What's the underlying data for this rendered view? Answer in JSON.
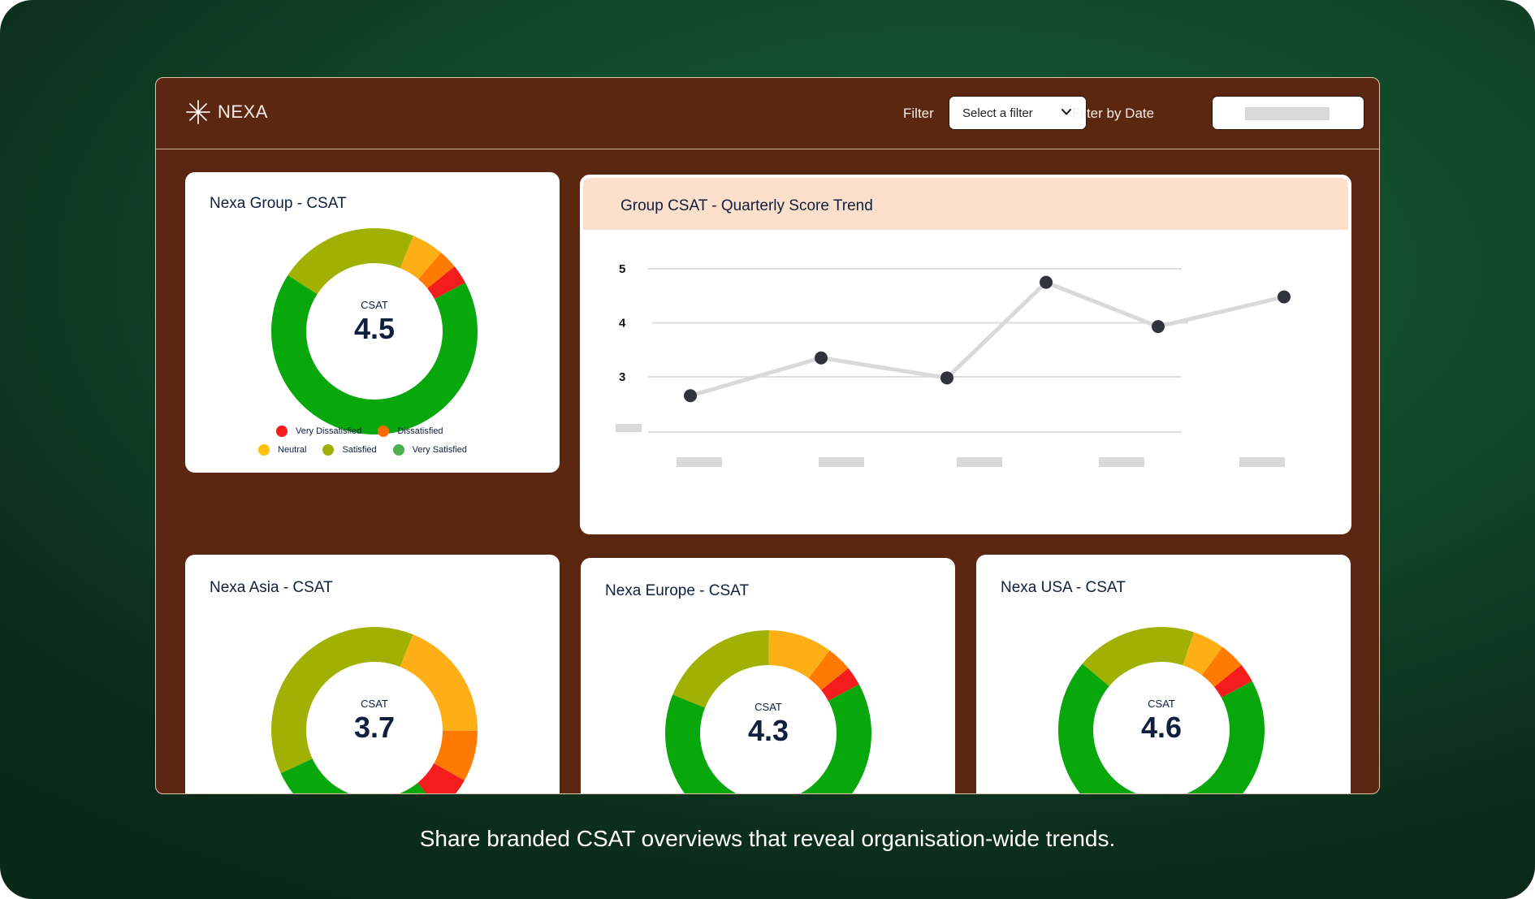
{
  "app": {
    "brand": "NEXA",
    "filter_label": "Filter",
    "filter_select_value": "Select a filter",
    "date_filter_label": "Filter by Date",
    "date_filter_value": ""
  },
  "colors": {
    "very_dissatisfied": "#F41C1C",
    "dissatisfied": "#FF7A00",
    "neutral": "#FFAF16",
    "satisfied": "#A1B103",
    "very_satisfied": "#08A70C",
    "legend_very_satisfied": "#4CAF50",
    "panel_bg": "#5C2710",
    "chart_header_bg": "#FCE0CB",
    "text_dark": "#0F1F3D"
  },
  "legend": [
    {
      "key": "very_dissatisfied",
      "label": "Very Dissatisfied"
    },
    {
      "key": "dissatisfied",
      "label": "Dissatisfied"
    },
    {
      "key": "neutral",
      "label": "Neutral"
    },
    {
      "key": "satisfied",
      "label": "Satisfied"
    },
    {
      "key": "very_satisfied",
      "label": "Very Satisfied"
    }
  ],
  "cards": {
    "group": {
      "title": "Nexa Group - CSAT",
      "center_label": "CSAT",
      "score": "4.5"
    },
    "asia": {
      "title": "Nexa Asia - CSAT",
      "center_label": "CSAT",
      "score": "3.7"
    },
    "europe": {
      "title": "Nexa Europe - CSAT",
      "center_label": "CSAT",
      "score": "4.3"
    },
    "usa": {
      "title": "Nexa USA - CSAT",
      "center_label": "CSAT",
      "score": "4.6"
    }
  },
  "chart_data": [
    {
      "type": "pie",
      "title": "Nexa Group - CSAT",
      "center_text": "CSAT 4.5",
      "categories": [
        "Satisfied",
        "Neutral",
        "Dissatisfied",
        "Very Dissatisfied",
        "Very Satisfied"
      ],
      "values": [
        22,
        5,
        3,
        3,
        67
      ],
      "unit": "percent (estimated)",
      "legend": "bottom"
    },
    {
      "type": "pie",
      "title": "Nexa Asia - CSAT",
      "center_text": "CSAT 3.7",
      "categories": [
        "Satisfied",
        "Neutral",
        "Dissatisfied",
        "Very Dissatisfied",
        "Very Satisfied"
      ],
      "values": [
        38,
        19,
        8,
        6,
        29
      ],
      "unit": "percent (estimated)"
    },
    {
      "type": "pie",
      "title": "Nexa Europe - CSAT",
      "center_text": "CSAT 4.3",
      "categories": [
        "Satisfied",
        "Neutral",
        "Dissatisfied",
        "Very Dissatisfied",
        "Very Satisfied"
      ],
      "values": [
        19,
        10,
        4,
        3,
        64
      ],
      "unit": "percent (estimated)"
    },
    {
      "type": "pie",
      "title": "Nexa USA - CSAT",
      "center_text": "CSAT 4.6",
      "categories": [
        "Satisfied",
        "Neutral",
        "Dissatisfied",
        "Very Dissatisfied",
        "Very Satisfied"
      ],
      "values": [
        19,
        5,
        4,
        3,
        69
      ],
      "unit": "percent (estimated)"
    },
    {
      "type": "line",
      "title": "Group CSAT - Quarterly Score Trend",
      "xlabel": "",
      "ylabel": "",
      "categories": [
        "",
        "",
        "",
        "",
        "",
        ""
      ],
      "series": [
        {
          "name": "Group CSAT",
          "values": [
            2.65,
            3.35,
            2.98,
            4.75,
            3.93,
            4.48
          ]
        }
      ],
      "y_ticks": [
        "5",
        "4",
        "3",
        ""
      ],
      "y_tick_values": [
        5,
        4,
        3,
        2
      ],
      "ylim": [
        2,
        5.2
      ],
      "grid": true,
      "x_tick_placeholders": 5
    }
  ],
  "caption": "Share branded CSAT overviews that reveal organisation-wide trends."
}
